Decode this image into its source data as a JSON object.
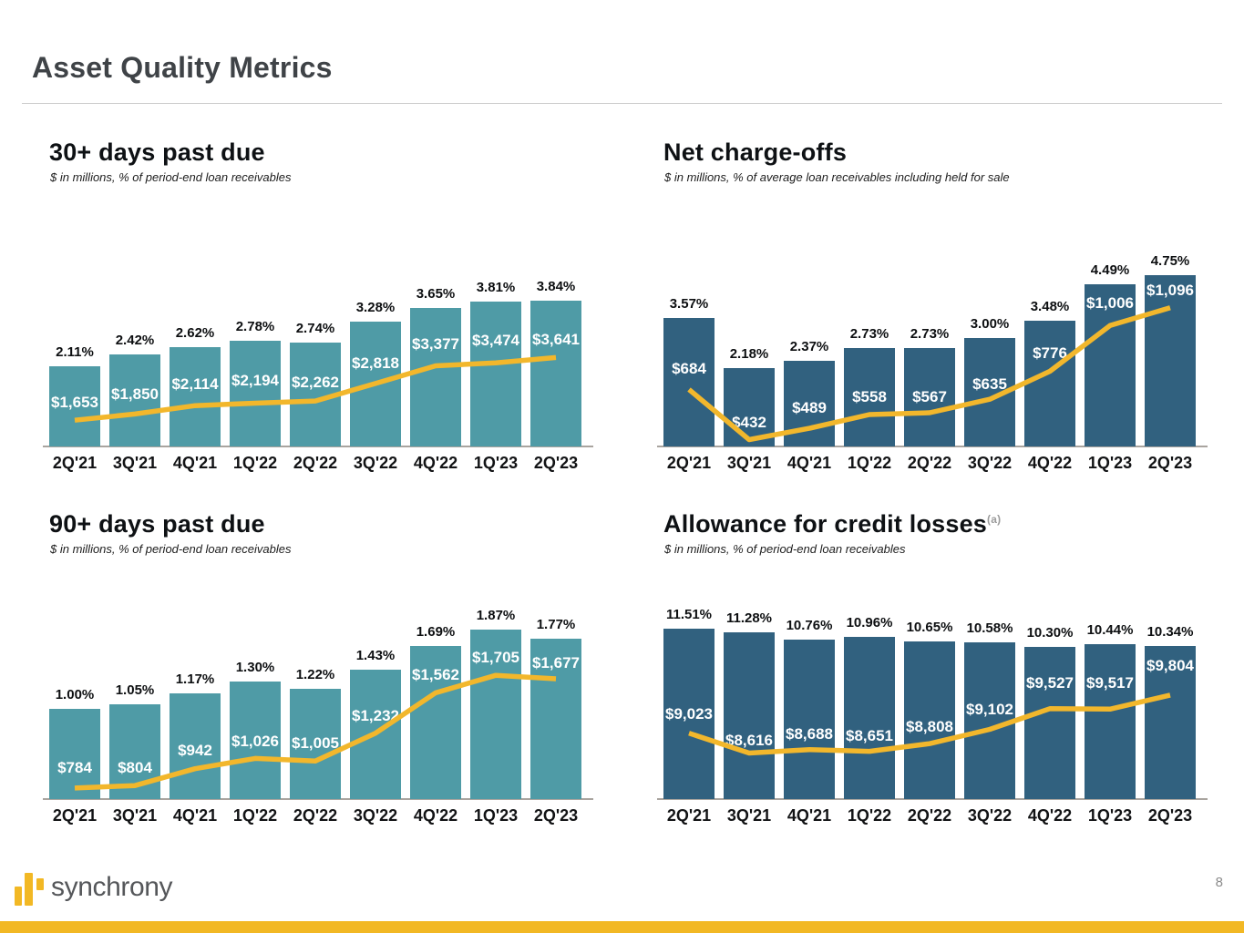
{
  "slide": {
    "title": "Asset Quality Metrics",
    "page_number": "8",
    "logo_text": "synchrony"
  },
  "colors": {
    "teal_bar": "#4F9BA6",
    "blue_bar": "#31617F",
    "line_gold": "#F2B72C",
    "footer_gold": "#F2B824",
    "axis_gray": "#A9A49F"
  },
  "chart_data": [
    {
      "type": "bar",
      "overlay_line": true,
      "title": "30+ days past due",
      "title_superscript": "",
      "subtitle": "$ in millions, % of period-end loan receivables",
      "categories": [
        "2Q'21",
        "3Q'21",
        "4Q'21",
        "1Q'22",
        "2Q'22",
        "3Q'22",
        "4Q'22",
        "1Q'23",
        "2Q'23"
      ],
      "bar_color": "#4F9BA6",
      "bar_metric": "percent_rate",
      "line_metric": "dollars_millions",
      "legend": "off",
      "series": [
        {
          "name": "dollars_millions",
          "values": [
            1653,
            1850,
            2114,
            2194,
            2262,
            2818,
            3377,
            3474,
            3641
          ],
          "labels": [
            "$1,653",
            "$1,850",
            "$2,114",
            "$2,194",
            "$2,262",
            "$2,818",
            "$3,377",
            "$3,474",
            "$3,641"
          ]
        },
        {
          "name": "percent_rate",
          "values": [
            2.11,
            2.42,
            2.62,
            2.78,
            2.74,
            3.28,
            3.65,
            3.81,
            3.84
          ],
          "labels": [
            "2.11%",
            "2.42%",
            "2.62%",
            "2.78%",
            "2.74%",
            "3.28%",
            "3.65%",
            "3.81%",
            "3.84%"
          ]
        }
      ]
    },
    {
      "type": "bar",
      "overlay_line": true,
      "title": "Net charge-offs",
      "title_superscript": "",
      "subtitle": "$ in millions, % of average loan receivables including held for sale",
      "categories": [
        "2Q'21",
        "3Q'21",
        "4Q'21",
        "1Q'22",
        "2Q'22",
        "3Q'22",
        "4Q'22",
        "1Q'23",
        "2Q'23"
      ],
      "bar_color": "#31617F",
      "bar_metric": "percent_rate",
      "line_metric": "dollars_millions",
      "legend": "off",
      "series": [
        {
          "name": "dollars_millions",
          "values": [
            684,
            432,
            489,
            558,
            567,
            635,
            776,
            1006,
            1096
          ],
          "labels": [
            "$684",
            "$432",
            "$489",
            "$558",
            "$567",
            "$635",
            "$776",
            "$1,006",
            "$1,096"
          ]
        },
        {
          "name": "percent_rate",
          "values": [
            3.57,
            2.18,
            2.37,
            2.73,
            2.73,
            3.0,
            3.48,
            4.49,
            4.75
          ],
          "labels": [
            "3.57%",
            "2.18%",
            "2.37%",
            "2.73%",
            "2.73%",
            "3.00%",
            "3.48%",
            "4.49%",
            "4.75%"
          ]
        }
      ]
    },
    {
      "type": "bar",
      "overlay_line": true,
      "title": "90+ days past due",
      "title_superscript": "",
      "subtitle": "$ in millions, % of period-end loan receivables",
      "categories": [
        "2Q'21",
        "3Q'21",
        "4Q'21",
        "1Q'22",
        "2Q'22",
        "3Q'22",
        "4Q'22",
        "1Q'23",
        "2Q'23"
      ],
      "bar_color": "#4F9BA6",
      "bar_metric": "percent_rate",
      "line_metric": "dollars_millions",
      "legend": "off",
      "series": [
        {
          "name": "dollars_millions",
          "values": [
            784,
            804,
            942,
            1026,
            1005,
            1232,
            1562,
            1705,
            1677
          ],
          "labels": [
            "$784",
            "$804",
            "$942",
            "$1,026",
            "$1,005",
            "$1,232",
            "$1,562",
            "$1,705",
            "$1,677"
          ]
        },
        {
          "name": "percent_rate",
          "values": [
            1.0,
            1.05,
            1.17,
            1.3,
            1.22,
            1.43,
            1.69,
            1.87,
            1.77
          ],
          "labels": [
            "1.00%",
            "1.05%",
            "1.17%",
            "1.30%",
            "1.22%",
            "1.43%",
            "1.69%",
            "1.87%",
            "1.77%"
          ]
        }
      ]
    },
    {
      "type": "bar",
      "overlay_line": true,
      "title": "Allowance for credit losses",
      "title_superscript": "(a)",
      "subtitle": "$ in millions, % of period-end loan receivables",
      "categories": [
        "2Q'21",
        "3Q'21",
        "4Q'21",
        "1Q'22",
        "2Q'22",
        "3Q'22",
        "4Q'22",
        "1Q'23",
        "2Q'23"
      ],
      "bar_color": "#31617F",
      "bar_metric": "percent_rate",
      "line_metric": "dollars_millions",
      "legend": "off",
      "series": [
        {
          "name": "dollars_millions",
          "values": [
            9023,
            8616,
            8688,
            8651,
            8808,
            9102,
            9527,
            9517,
            9804
          ],
          "labels": [
            "$9,023",
            "$8,616",
            "$8,688",
            "$8,651",
            "$8,808",
            "$9,102",
            "$9,527",
            "$9,517",
            "$9,804"
          ]
        },
        {
          "name": "percent_rate",
          "values": [
            11.51,
            11.28,
            10.76,
            10.96,
            10.65,
            10.58,
            10.3,
            10.44,
            10.34
          ],
          "labels": [
            "11.51%",
            "11.28%",
            "10.76%",
            "10.96%",
            "10.65%",
            "10.58%",
            "10.30%",
            "10.44%",
            "10.34%"
          ]
        }
      ]
    }
  ]
}
